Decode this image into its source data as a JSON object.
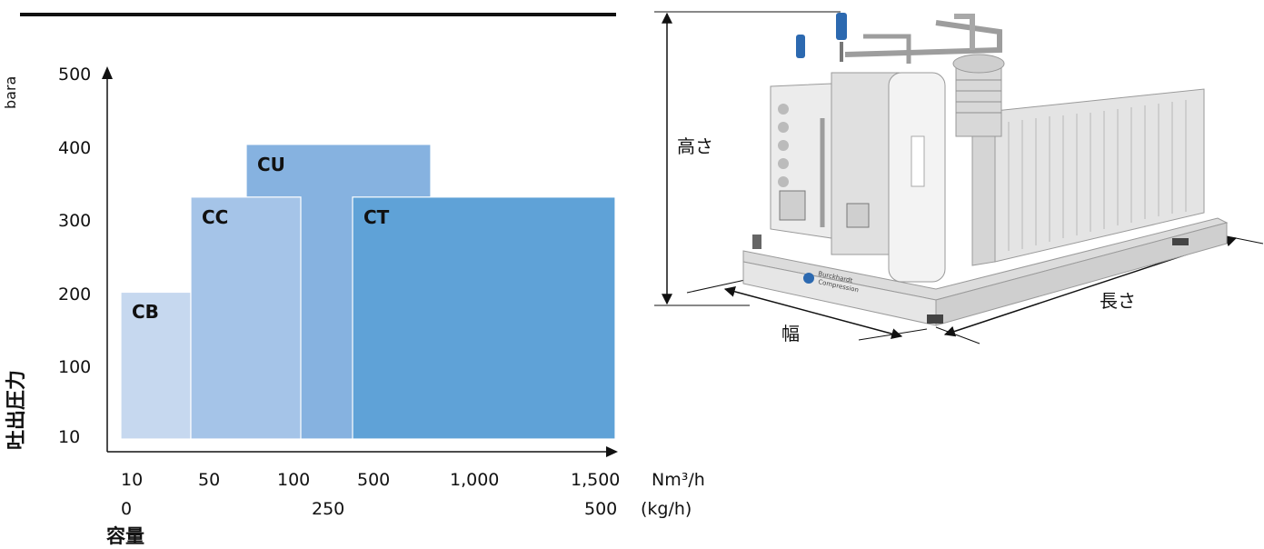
{
  "chart_data": {
    "type": "bar",
    "ylabel": "吐出圧力",
    "yunit": "bara",
    "xlabel": "容量",
    "y_ticks": [
      10,
      100,
      200,
      300,
      400,
      500
    ],
    "x_ticks_flow": [
      "10",
      "50",
      "100",
      "500",
      "1,000",
      "1,500"
    ],
    "x_unit_flow": "Nm³/h",
    "x_ticks_mass": [
      "0",
      "250",
      "500"
    ],
    "x_unit_mass": "(kg/h)",
    "series": [
      {
        "name": "CB",
        "pressure_range": [
          10,
          205
        ],
        "flow_range": [
          "10",
          "50"
        ],
        "color": "#c6d8ef"
      },
      {
        "name": "CC",
        "pressure_range": [
          10,
          335
        ],
        "flow_range": [
          "50",
          "100"
        ],
        "color": "#a5c4e8"
      },
      {
        "name": "CU",
        "pressure_range": [
          10,
          407
        ],
        "flow_range": [
          "100",
          "500"
        ],
        "color": "#86b2e0"
      },
      {
        "name": "CT",
        "pressure_range": [
          10,
          335
        ],
        "flow_range": [
          "500",
          "1,500"
        ],
        "color": "#5fa2d7"
      }
    ]
  },
  "dimensions": {
    "height_label": "高さ",
    "width_label": "幅",
    "length_label": "長さ"
  },
  "photo": {
    "brand_line1": "Burckhardt",
    "brand_line2": "Compression"
  }
}
